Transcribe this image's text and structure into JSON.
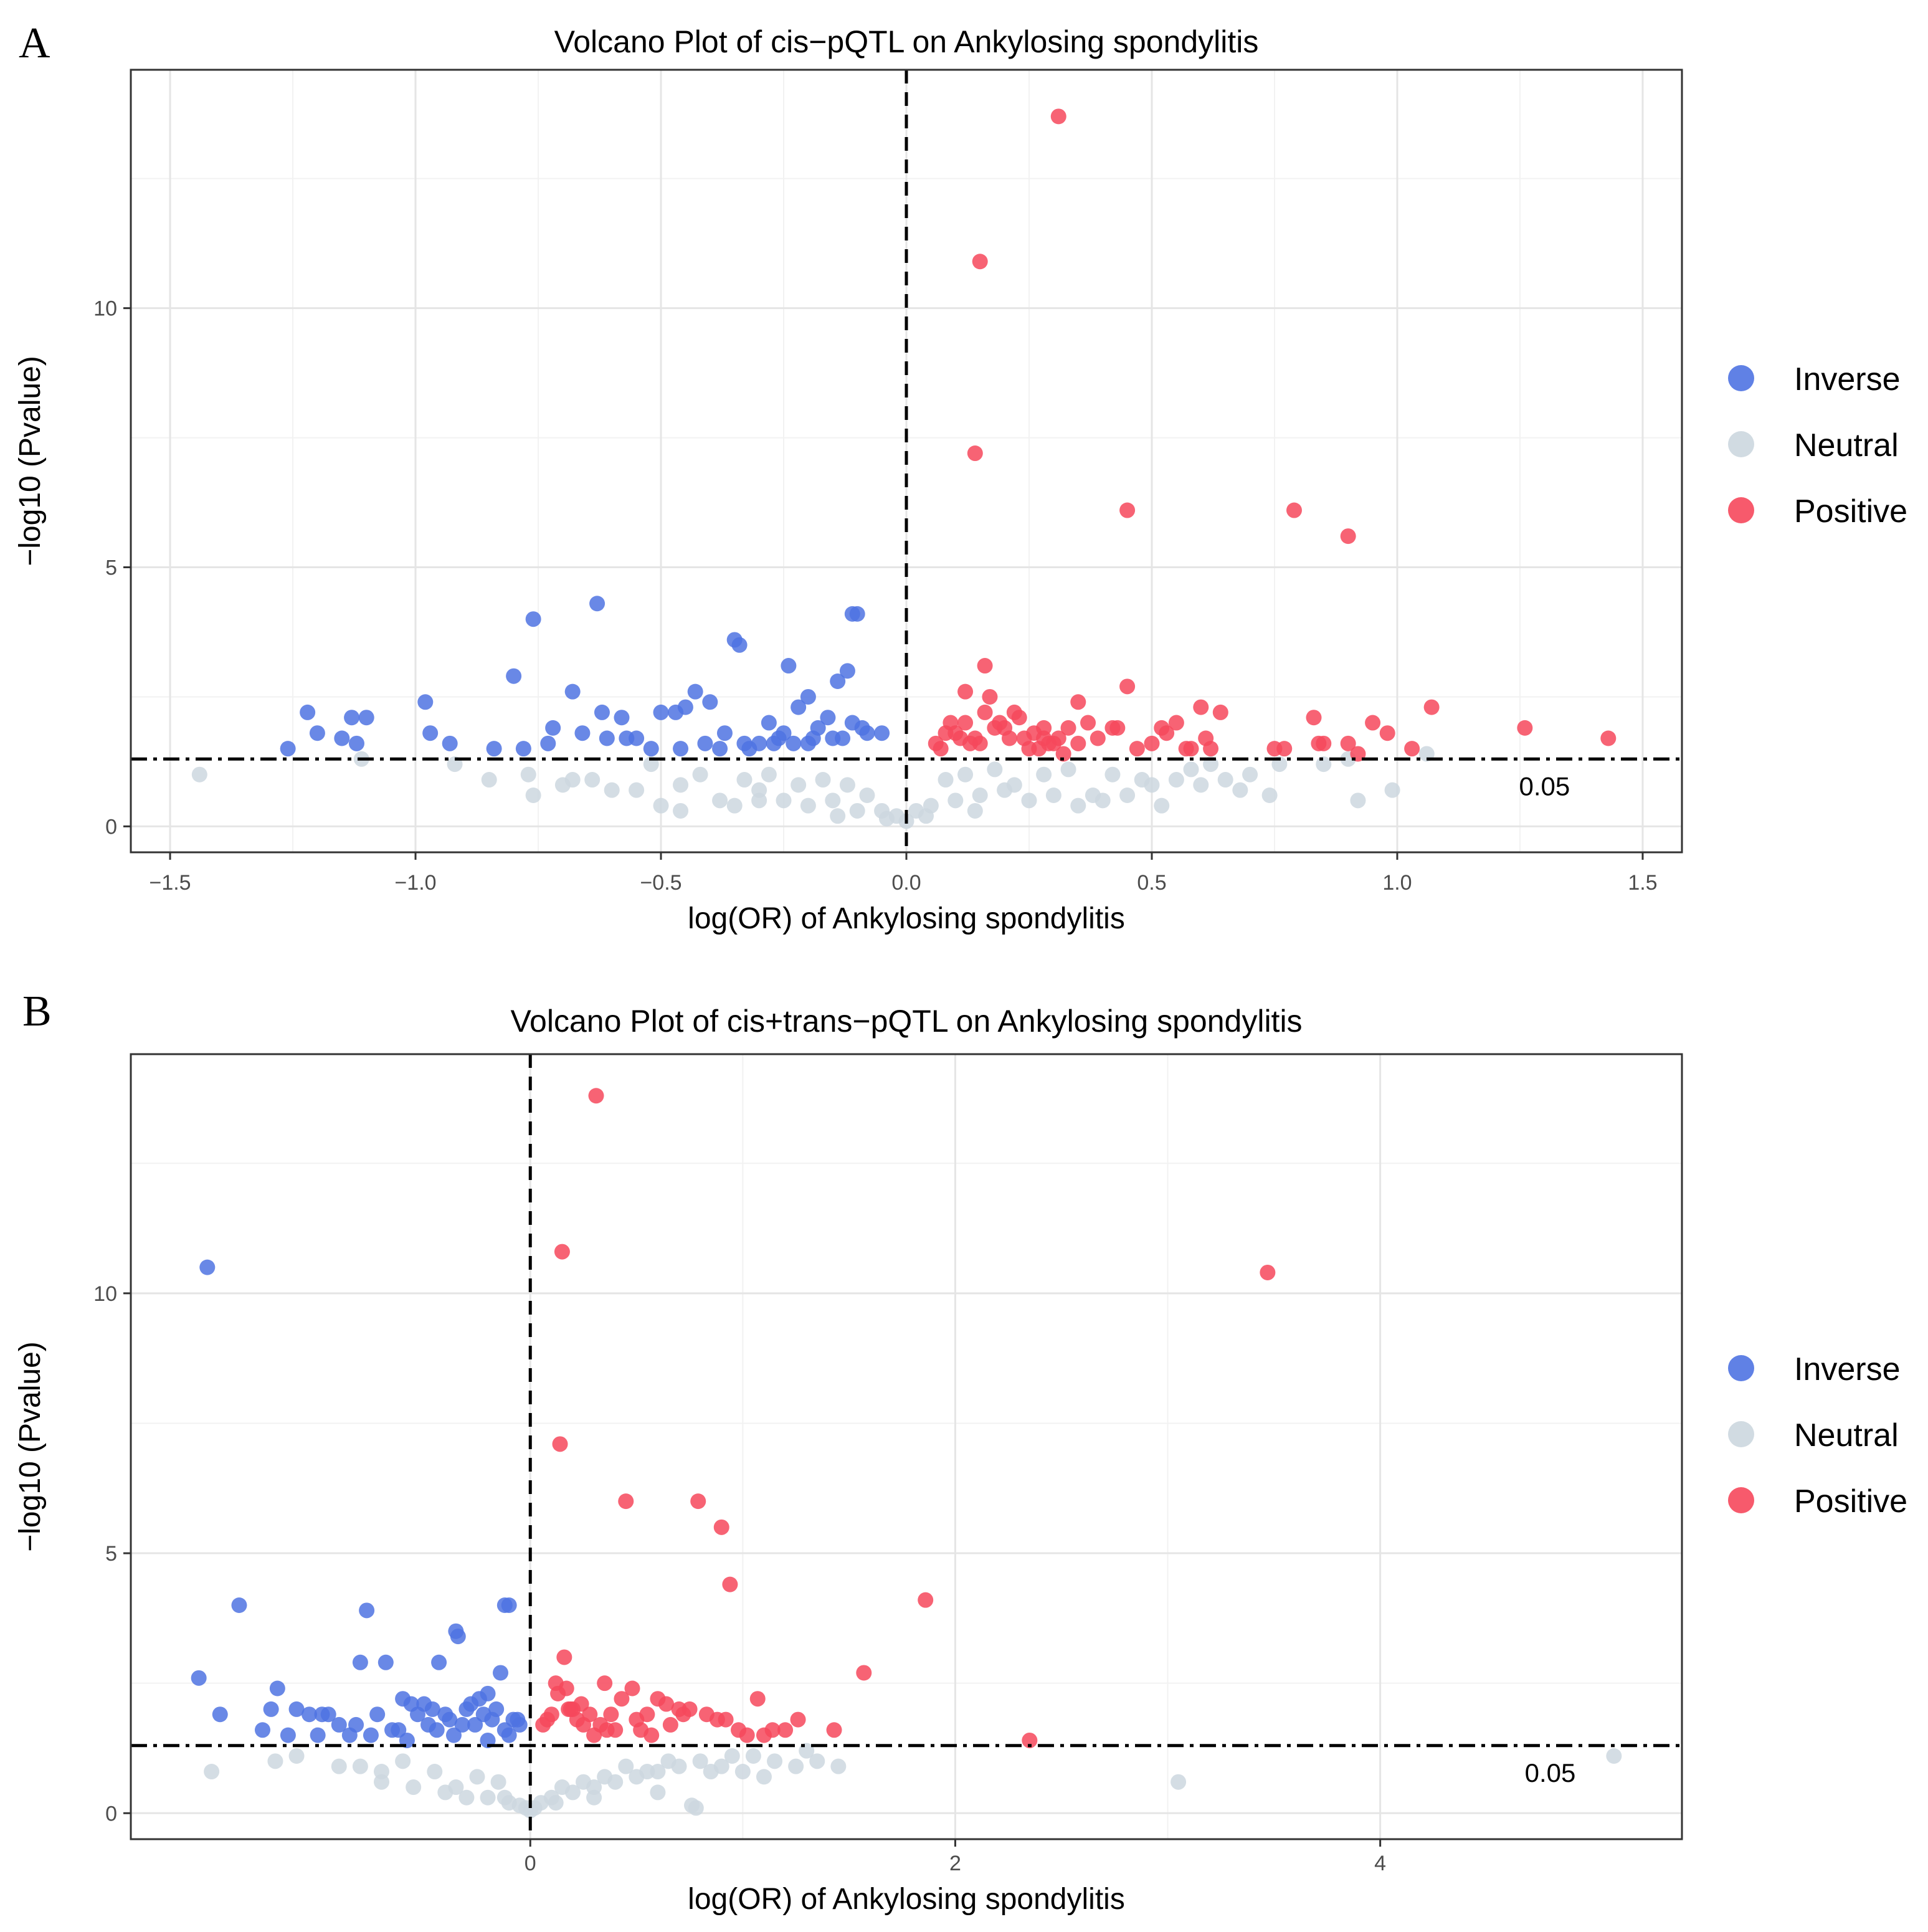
{
  "colors": {
    "inverse": "#4f73e2",
    "neutral": "#ccd7df",
    "positive": "#f6485c",
    "grid_major": "#e5e5e5",
    "grid_minor": "#f2f2f2",
    "frame": "#333333"
  },
  "legend": {
    "placement": "right",
    "items": [
      {
        "key": "inverse",
        "label": "Inverse"
      },
      {
        "key": "neutral",
        "label": "Neutral"
      },
      {
        "key": "positive",
        "label": "Positive"
      }
    ]
  },
  "chart_data": [
    {
      "panel": "A",
      "type": "scatter",
      "title": "Volcano Plot of cis−pQTL on Ankylosing spondylitis",
      "xlabel": "log(OR) of Ankylosing spondylitis",
      "ylabel": "−log10 (Pvalue)",
      "xlim": [
        -1.58,
        1.58
      ],
      "ylim": [
        -0.5,
        14.6
      ],
      "xticks": [
        -1.5,
        -1.0,
        -0.5,
        0.0,
        0.5,
        1.0,
        1.5
      ],
      "xtick_labels": [
        "−1.5",
        "−1.0",
        "−0.5",
        "0.0",
        "0.5",
        "1.0",
        "1.5"
      ],
      "yticks": [
        0,
        5,
        10
      ],
      "ytick_labels": [
        "0",
        "5",
        "10"
      ],
      "grid": true,
      "vline_x": 0,
      "hline_y": 1.3,
      "threshold_label": "0.05",
      "threshold_label_x": 1.3,
      "series": [
        {
          "category": "Positive",
          "x": [
            0.31,
            0.15,
            0.14,
            0.45,
            0.79,
            0.9,
            0.16,
            0.45,
            0.12,
            0.17,
            0.35,
            0.6,
            0.64,
            0.08,
            0.12,
            0.19,
            0.28,
            0.43,
            0.83,
            0.95,
            1.07,
            1.26,
            1.43,
            0.06,
            0.1,
            0.14,
            0.18,
            0.22,
            0.24,
            0.26,
            0.29,
            0.31,
            0.33,
            0.35,
            0.39,
            0.42,
            0.5,
            0.53,
            0.55,
            0.57,
            0.61,
            0.75,
            0.77,
            0.84,
            0.9,
            0.98,
            1.03,
            0.09,
            0.11,
            0.13,
            0.16,
            0.2,
            0.21,
            0.23,
            0.27,
            0.3,
            0.37,
            0.47,
            0.52,
            0.58,
            0.62,
            0.85,
            0.92,
            0.07,
            0.15,
            0.25,
            0.28,
            0.32
          ],
          "y": [
            13.7,
            10.9,
            7.2,
            6.1,
            6.1,
            5.6,
            3.1,
            2.7,
            2.6,
            2.5,
            2.4,
            2.3,
            2.2,
            1.8,
            2.0,
            2.0,
            1.9,
            1.9,
            2.1,
            2.0,
            2.3,
            1.9,
            1.7,
            1.6,
            1.8,
            1.7,
            1.9,
            2.2,
            1.7,
            1.8,
            1.6,
            1.7,
            1.9,
            1.6,
            1.7,
            1.9,
            1.6,
            1.8,
            2.0,
            1.5,
            1.7,
            1.5,
            1.5,
            1.6,
            1.6,
            1.8,
            1.5,
            2.0,
            1.7,
            1.6,
            2.2,
            1.9,
            1.7,
            2.1,
            1.5,
            1.6,
            2.0,
            1.5,
            1.9,
            1.5,
            1.5,
            1.6,
            1.4,
            1.5,
            1.6,
            1.5,
            1.7,
            1.4
          ]
        },
        {
          "category": "Inverse",
          "x": [
            -0.63,
            -0.76,
            -0.1,
            -0.11,
            -0.35,
            -0.34,
            -0.24,
            -0.12,
            -0.8,
            -0.14,
            -0.68,
            -0.43,
            -0.2,
            -0.22,
            -0.98,
            -1.22,
            -1.13,
            -1.1,
            -1.2,
            -1.15,
            -1.12,
            -1.26,
            -0.93,
            -0.97,
            -0.84,
            -0.78,
            -0.72,
            -0.62,
            -0.58,
            -0.5,
            -0.47,
            -0.45,
            -0.4,
            -0.37,
            -0.28,
            -0.25,
            -0.18,
            -0.16,
            -0.05,
            -0.08,
            -0.3,
            -0.32,
            -0.38,
            -0.55,
            -0.61,
            -0.66,
            -0.73,
            -0.26,
            -0.2,
            -0.13,
            -0.09,
            -0.15,
            -0.23,
            -0.19,
            -0.27,
            -0.11,
            -0.33,
            -0.41,
            -0.46,
            -0.52,
            -0.57
          ],
          "y": [
            4.3,
            4.0,
            4.1,
            4.1,
            3.6,
            3.5,
            3.1,
            3.0,
            2.9,
            2.8,
            2.6,
            2.6,
            2.5,
            2.3,
            2.4,
            2.2,
            2.1,
            2.1,
            1.8,
            1.7,
            1.6,
            1.5,
            1.6,
            1.8,
            1.5,
            1.5,
            1.9,
            2.2,
            2.1,
            2.2,
            2.2,
            2.3,
            2.4,
            1.8,
            2.0,
            1.8,
            1.9,
            2.1,
            1.8,
            1.8,
            1.6,
            1.5,
            1.5,
            1.7,
            1.7,
            1.8,
            1.6,
            1.7,
            1.6,
            1.7,
            1.9,
            1.7,
            1.6,
            1.7,
            1.6,
            2.0,
            1.6,
            1.6,
            1.5,
            1.5,
            1.7
          ]
        },
        {
          "category": "Neutral",
          "x": [
            -1.44,
            -1.11,
            -0.92,
            -0.85,
            -0.77,
            -0.76,
            -0.7,
            -0.68,
            -0.6,
            -0.55,
            -0.5,
            -0.46,
            -0.46,
            -0.38,
            -0.35,
            -0.3,
            -0.25,
            -0.2,
            -0.15,
            -0.1,
            -0.05,
            -0.02,
            0.02,
            0.05,
            0.1,
            0.15,
            0.2,
            0.25,
            0.3,
            0.35,
            0.4,
            0.45,
            0.5,
            0.55,
            0.6,
            0.65,
            0.7,
            0.74,
            0.76,
            0.85,
            0.9,
            0.92,
            0.99,
            1.06,
            -0.33,
            -0.28,
            -0.22,
            -0.17,
            -0.12,
            -0.08,
            0.08,
            0.12,
            0.18,
            0.22,
            0.28,
            0.33,
            0.42,
            0.48,
            0.58,
            0.62,
            -0.42,
            -0.52,
            -0.64,
            -0.3,
            0.38,
            0.52,
            0.68,
            -0.14,
            0.14,
            -0.04,
            0.04,
            0.0
          ],
          "y": [
            1.0,
            1.3,
            1.2,
            0.9,
            1.0,
            0.6,
            0.8,
            0.9,
            0.7,
            0.7,
            0.4,
            0.3,
            0.8,
            0.5,
            0.4,
            0.5,
            0.5,
            0.4,
            0.5,
            0.3,
            0.3,
            0.2,
            0.3,
            0.4,
            0.5,
            0.6,
            0.7,
            0.5,
            0.6,
            0.4,
            0.5,
            0.6,
            0.8,
            0.9,
            0.8,
            0.9,
            1.0,
            0.6,
            1.2,
            1.2,
            1.3,
            0.5,
            0.7,
            1.4,
            0.9,
            1.0,
            0.8,
            0.9,
            0.8,
            0.6,
            0.9,
            1.0,
            1.1,
            0.8,
            1.0,
            1.1,
            1.0,
            0.9,
            1.1,
            1.2,
            1.0,
            1.2,
            0.9,
            0.7,
            0.6,
            0.4,
            0.7,
            0.2,
            0.3,
            0.15,
            0.2,
            0.1
          ]
        }
      ]
    },
    {
      "panel": "B",
      "type": "scatter",
      "title": "Volcano Plot of cis+trans−pQTL on Ankylosing spondylitis",
      "xlabel": "log(OR) of Ankylosing spondylitis",
      "ylabel": "−log10 (Pvalue)",
      "xlim": [
        -1.88,
        5.42
      ],
      "ylim": [
        -0.5,
        14.6
      ],
      "xticks": [
        0,
        2,
        4
      ],
      "xtick_labels": [
        "0",
        "2",
        "4"
      ],
      "yticks": [
        0,
        5,
        10
      ],
      "ytick_labels": [
        "0",
        "5",
        "10"
      ],
      "grid": true,
      "vline_x": 0,
      "hline_y": 1.3,
      "threshold_label": "0.05",
      "threshold_label_x": 4.8,
      "series": [
        {
          "category": "Positive",
          "x": [
            0.31,
            0.15,
            3.47,
            0.14,
            0.45,
            0.79,
            0.9,
            0.94,
            1.86,
            0.16,
            1.57,
            2.35,
            0.12,
            0.17,
            0.35,
            0.48,
            0.6,
            0.64,
            0.08,
            0.19,
            0.28,
            0.43,
            0.83,
            1.07,
            1.26,
            1.43,
            0.06,
            0.1,
            0.2,
            0.22,
            0.25,
            0.38,
            0.5,
            0.55,
            0.7,
            0.75,
            0.88,
            0.98,
            1.1,
            1.2,
            0.24,
            0.33,
            0.4,
            0.52,
            0.66,
            0.72,
            0.92,
            1.02,
            1.14,
            0.13,
            0.18,
            0.3,
            0.36,
            0.57
          ],
          "y": [
            13.8,
            10.8,
            10.4,
            7.1,
            6.0,
            6.0,
            5.5,
            4.4,
            4.1,
            3.0,
            2.7,
            1.4,
            2.5,
            2.4,
            2.5,
            2.4,
            2.2,
            2.1,
            1.8,
            2.0,
            1.9,
            2.2,
            1.9,
            2.2,
            1.8,
            1.6,
            1.7,
            1.9,
            2.0,
            1.8,
            1.7,
            1.9,
            1.8,
            1.9,
            2.0,
            2.0,
            1.8,
            1.6,
            1.5,
            1.6,
            2.1,
            1.7,
            1.6,
            1.6,
            1.7,
            1.9,
            1.8,
            1.5,
            1.6,
            2.3,
            2.0,
            1.5,
            1.6,
            1.5
          ],
          "display": "solid-positive"
        },
        {
          "category": "Inverse",
          "x": [
            -1.52,
            -1.37,
            -0.77,
            -0.35,
            -0.34,
            -0.1,
            -0.12,
            -0.8,
            -0.14,
            -0.68,
            -0.43,
            -0.2,
            -0.24,
            -1.56,
            -1.19,
            -1.22,
            -1.1,
            -1.04,
            -0.98,
            -0.9,
            -0.82,
            -0.6,
            -0.5,
            -0.46,
            -0.4,
            -0.3,
            -0.22,
            -0.18,
            -0.08,
            -1.46,
            -1.26,
            -1.14,
            -1.0,
            -0.95,
            -0.72,
            -0.65,
            -0.56,
            -0.48,
            -0.38,
            -0.28,
            -0.16,
            -0.05,
            -0.62,
            -0.53,
            -0.44,
            -0.32,
            -0.26,
            -0.12,
            -0.06,
            -0.85,
            -0.75,
            -0.58,
            -0.36,
            -0.2,
            -0.1
          ],
          "y": [
            10.5,
            4.0,
            3.9,
            3.5,
            3.4,
            4.0,
            4.0,
            2.9,
            2.7,
            2.9,
            2.9,
            2.3,
            2.2,
            2.6,
            2.4,
            2.0,
            2.0,
            1.9,
            1.9,
            1.7,
            1.7,
            2.2,
            2.1,
            2.0,
            1.9,
            2.0,
            1.9,
            1.8,
            1.8,
            1.9,
            1.6,
            1.5,
            1.5,
            1.9,
            1.9,
            1.6,
            2.1,
            1.7,
            1.8,
            2.1,
            2.0,
            1.7,
            1.6,
            1.9,
            1.6,
            1.7,
            1.7,
            1.6,
            1.8,
            1.5,
            1.5,
            1.4,
            1.5,
            1.4,
            1.5
          ]
        },
        {
          "category": "Neutral",
          "x": [
            -1.5,
            -1.2,
            -1.1,
            -0.9,
            -0.7,
            -0.55,
            -0.4,
            -0.3,
            -0.2,
            -0.1,
            -0.05,
            0.05,
            0.1,
            0.2,
            0.3,
            0.4,
            0.5,
            0.6,
            0.7,
            0.8,
            0.85,
            0.95,
            1.05,
            1.15,
            1.25,
            1.35,
            1.45,
            0.76,
            0.78,
            3.05,
            5.1,
            -0.6,
            -0.45,
            -0.25,
            -0.15,
            0.15,
            0.25,
            0.35,
            0.45,
            0.55,
            0.65,
            0.9,
            1.0,
            1.1,
            -0.8,
            -0.35,
            0.02,
            -0.02,
            0.6,
            0.3,
            -0.7,
            1.3,
            0.12,
            -0.12,
            0.0
          ],
          "y": [
            0.8,
            1.0,
            1.1,
            0.9,
            0.6,
            0.5,
            0.4,
            0.3,
            0.3,
            0.2,
            0.15,
            0.2,
            0.3,
            0.4,
            0.5,
            0.6,
            0.7,
            0.8,
            0.9,
            1.0,
            0.8,
            1.1,
            1.1,
            1.0,
            0.9,
            1.0,
            0.9,
            0.15,
            0.1,
            0.6,
            1.1,
            1.0,
            0.8,
            0.7,
            0.6,
            0.5,
            0.6,
            0.7,
            0.9,
            0.8,
            1.0,
            0.9,
            0.8,
            0.7,
            0.9,
            0.5,
            0.1,
            0.1,
            0.4,
            0.3,
            0.8,
            1.2,
            0.2,
            0.3,
            0.05
          ]
        }
      ]
    }
  ]
}
